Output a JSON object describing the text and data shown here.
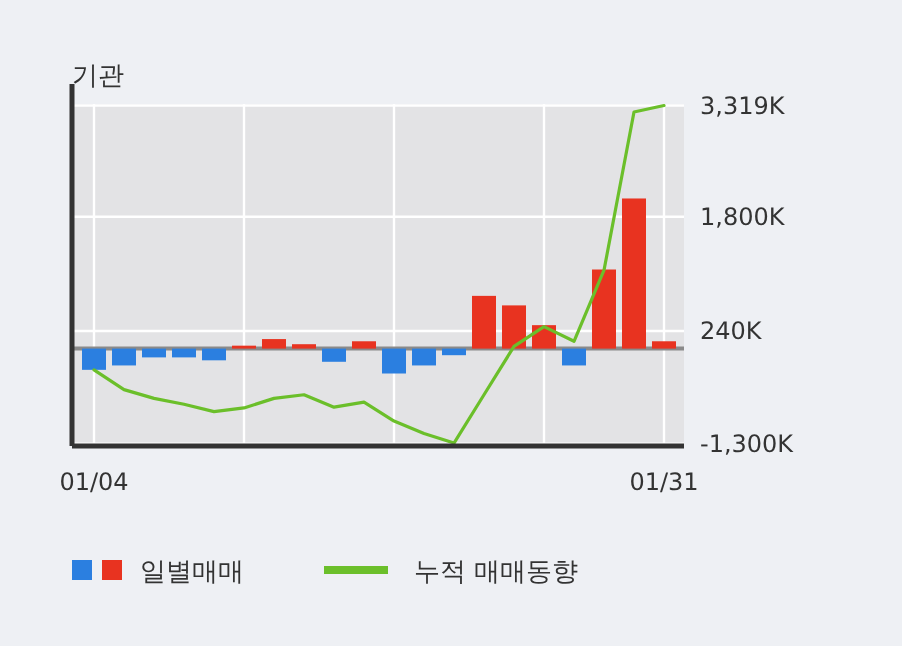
{
  "chart_data": {
    "type": "bar",
    "title": "기관",
    "categories": [
      "01/04",
      null,
      null,
      null,
      null,
      null,
      null,
      null,
      null,
      null,
      null,
      null,
      null,
      null,
      null,
      null,
      null,
      null,
      null,
      "01/31"
    ],
    "series": [
      {
        "name": "일별매매",
        "colors": [
          "#2b7fe0",
          "#2b7fe0",
          "#2b7fe0",
          "#2b7fe0",
          "#2b7fe0",
          "#e83320",
          "#e83320",
          "#e83320",
          "#2b7fe0",
          "#e83320",
          "#2b7fe0",
          "#2b7fe0",
          "#2b7fe0",
          "#e83320",
          "#e83320",
          "#e83320",
          "#2b7fe0",
          "#e83320",
          "#e83320",
          "#e83320"
        ],
        "values": [
          -290,
          -230,
          -120,
          -120,
          -160,
          40,
          130,
          60,
          -180,
          100,
          -340,
          -230,
          -90,
          720,
          590,
          320,
          -230,
          1080,
          2050,
          100
        ]
      },
      {
        "name": "누적 매매동향",
        "type": "line",
        "color": "#6bbf2a",
        "values": [
          -290,
          -560,
          -680,
          -760,
          -860,
          -810,
          -680,
          -630,
          -800,
          -730,
          -990,
          -1160,
          -1290,
          -630,
          30,
          300,
          100,
          1070,
          3230,
          3319
        ]
      }
    ],
    "ylim": [
      -1330,
      3340
    ],
    "yticks": [
      {
        "value": 3319,
        "label": "3,319K"
      },
      {
        "value": 1800,
        "label": "1,800K"
      },
      {
        "value": 240,
        "label": "240K"
      },
      {
        "value": -1300,
        "label": "-1,300K"
      }
    ],
    "grid": true,
    "legend": "bottom"
  }
}
